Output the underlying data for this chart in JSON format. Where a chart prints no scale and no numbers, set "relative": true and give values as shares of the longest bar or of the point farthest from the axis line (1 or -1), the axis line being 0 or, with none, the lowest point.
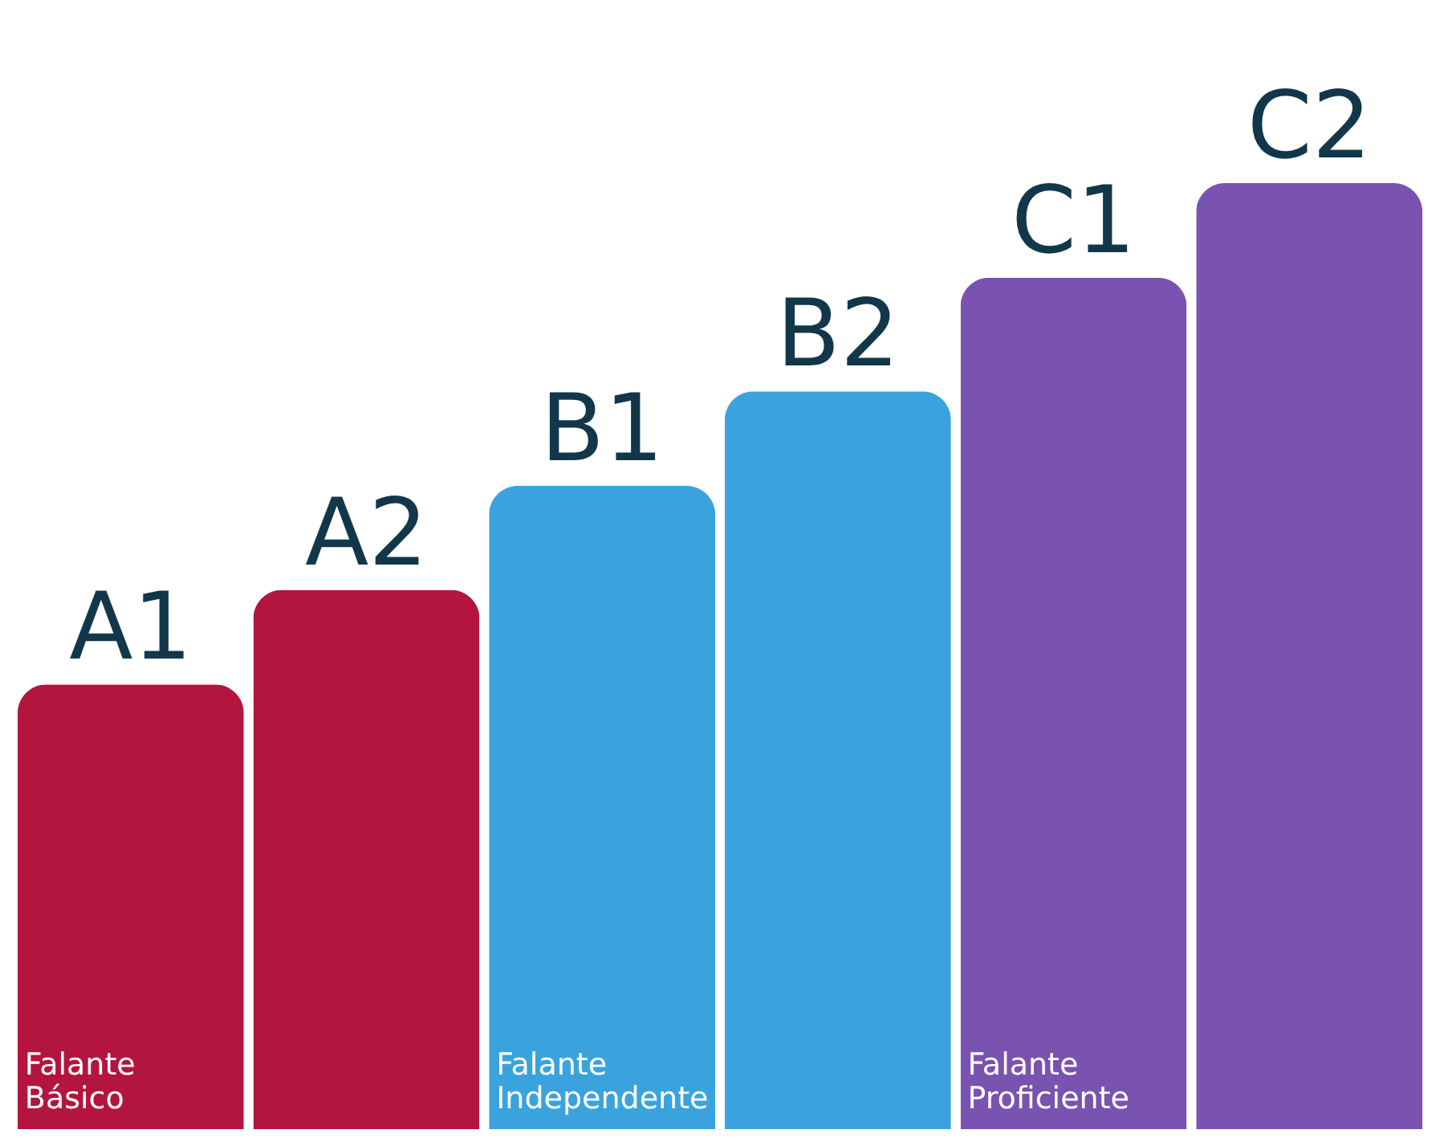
{
  "chart_data": {
    "type": "bar",
    "relative": true,
    "categories": [
      "A1",
      "A2",
      "B1",
      "B2",
      "C1",
      "C2"
    ],
    "values": [
      0.47,
      0.57,
      0.68,
      0.78,
      0.9,
      1
    ],
    "colors": [
      "#b3153f",
      "#b3153f",
      "#3aa3dd",
      "#3aa3dd",
      "#7a52b0",
      "#7a52b0"
    ],
    "annotations": [
      "Falante Básico",
      "Falante Independente",
      "Falante Proficiente"
    ]
  }
}
